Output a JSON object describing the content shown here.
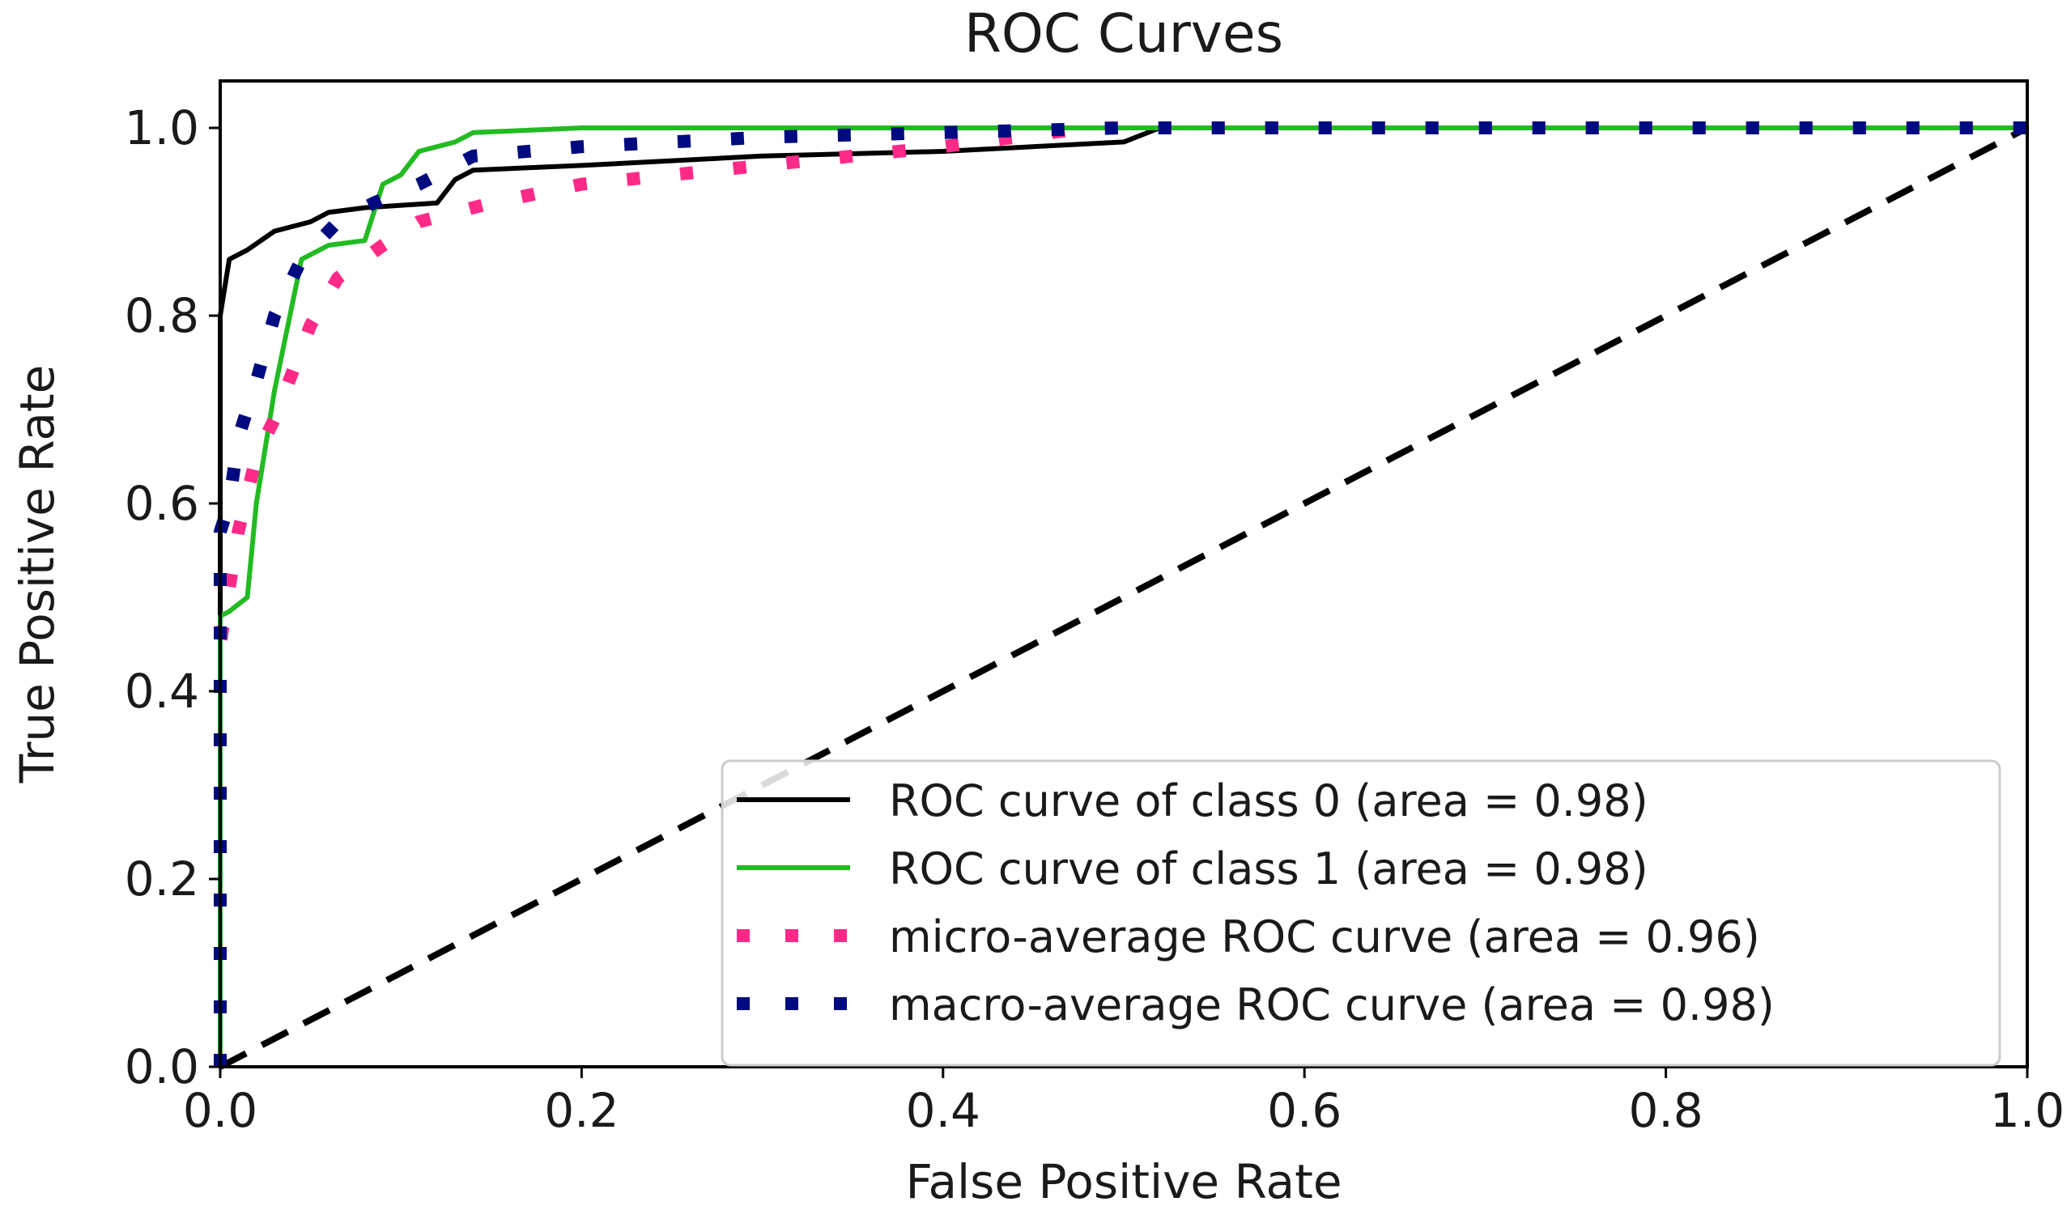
{
  "chart_data": {
    "type": "line",
    "title": "ROC Curves",
    "xlabel": "False Positive Rate",
    "ylabel": "True Positive Rate",
    "xlim": [
      0.0,
      1.0
    ],
    "ylim": [
      0.0,
      1.05
    ],
    "xticks": [
      "0.0",
      "0.2",
      "0.4",
      "0.6",
      "0.8",
      "1.0"
    ],
    "yticks": [
      "0.0",
      "0.2",
      "0.4",
      "0.6",
      "0.8",
      "1.0"
    ],
    "grid": false,
    "legend_position": "lower-right",
    "series": [
      {
        "name": "ROC curve of class 0 (area = 0.98)",
        "color": "#000000",
        "style": "solid",
        "points": [
          [
            0.0,
            0.0
          ],
          [
            0.0,
            0.8
          ],
          [
            0.005,
            0.86
          ],
          [
            0.015,
            0.87
          ],
          [
            0.03,
            0.89
          ],
          [
            0.05,
            0.9
          ],
          [
            0.06,
            0.91
          ],
          [
            0.08,
            0.915
          ],
          [
            0.12,
            0.92
          ],
          [
            0.13,
            0.945
          ],
          [
            0.14,
            0.955
          ],
          [
            0.2,
            0.96
          ],
          [
            0.3,
            0.97
          ],
          [
            0.4,
            0.975
          ],
          [
            0.5,
            0.985
          ],
          [
            0.52,
            1.0
          ],
          [
            1.0,
            1.0
          ]
        ]
      },
      {
        "name": "ROC curve of class 1 (area = 0.98)",
        "color": "#22bb22",
        "style": "solid",
        "points": [
          [
            0.0,
            0.0
          ],
          [
            0.0,
            0.48
          ],
          [
            0.005,
            0.485
          ],
          [
            0.015,
            0.5
          ],
          [
            0.02,
            0.6
          ],
          [
            0.03,
            0.72
          ],
          [
            0.045,
            0.86
          ],
          [
            0.06,
            0.875
          ],
          [
            0.08,
            0.88
          ],
          [
            0.09,
            0.94
          ],
          [
            0.1,
            0.95
          ],
          [
            0.11,
            0.975
          ],
          [
            0.13,
            0.985
          ],
          [
            0.14,
            0.995
          ],
          [
            0.2,
            1.0
          ],
          [
            1.0,
            1.0
          ]
        ]
      },
      {
        "name": "micro-average ROC curve (area = 0.96)",
        "color": "#ff2a88",
        "style": "dotted",
        "points": [
          [
            0.0,
            0.0
          ],
          [
            0.0,
            0.45
          ],
          [
            0.01,
            0.57
          ],
          [
            0.02,
            0.65
          ],
          [
            0.03,
            0.69
          ],
          [
            0.04,
            0.74
          ],
          [
            0.05,
            0.79
          ],
          [
            0.065,
            0.84
          ],
          [
            0.09,
            0.875
          ],
          [
            0.11,
            0.9
          ],
          [
            0.15,
            0.92
          ],
          [
            0.2,
            0.94
          ],
          [
            0.3,
            0.96
          ],
          [
            0.4,
            0.98
          ],
          [
            0.48,
            1.0
          ],
          [
            1.0,
            1.0
          ]
        ]
      },
      {
        "name": "macro-average ROC curve (area = 0.98)",
        "color": "#000a80",
        "style": "dotted",
        "points": [
          [
            0.0,
            0.0
          ],
          [
            0.0,
            0.57
          ],
          [
            0.005,
            0.6
          ],
          [
            0.01,
            0.67
          ],
          [
            0.02,
            0.73
          ],
          [
            0.03,
            0.8
          ],
          [
            0.045,
            0.86
          ],
          [
            0.065,
            0.9
          ],
          [
            0.085,
            0.92
          ],
          [
            0.11,
            0.94
          ],
          [
            0.14,
            0.97
          ],
          [
            0.2,
            0.98
          ],
          [
            0.3,
            0.99
          ],
          [
            0.5,
            1.0
          ],
          [
            1.0,
            1.0
          ]
        ]
      },
      {
        "name": "chance",
        "color": "#000000",
        "style": "dashed",
        "legend": false,
        "points": [
          [
            0.0,
            0.0
          ],
          [
            1.0,
            1.0
          ]
        ]
      }
    ]
  }
}
